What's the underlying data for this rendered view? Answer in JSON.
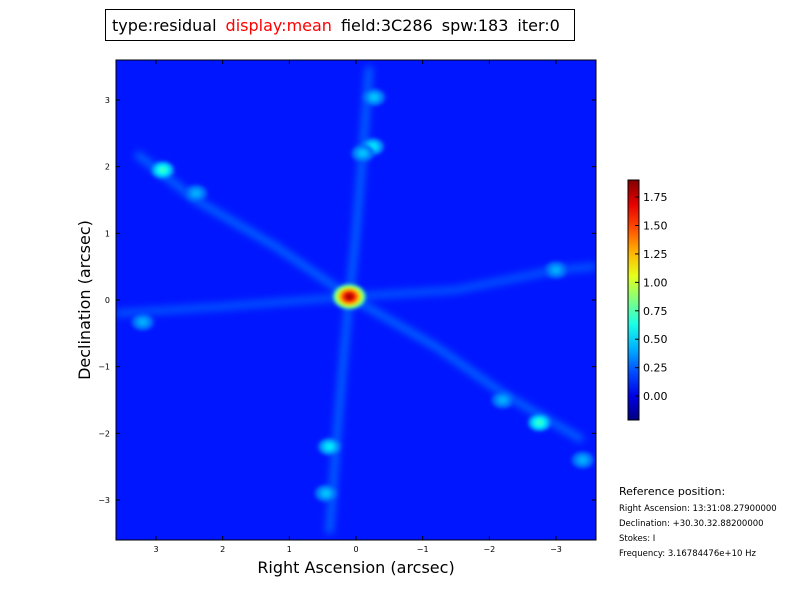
{
  "title": {
    "type": "type:residual",
    "display": "display:mean",
    "field": "field:3C286",
    "spw": "spw:183",
    "iter": "iter:0",
    "display_color": "#ff0000"
  },
  "chart_data": {
    "type": "heatmap",
    "colormap": "jet",
    "xlabel": "Right Ascension (arcsec)",
    "ylabel": "Declination (arcsec)",
    "xlim": [
      3.6,
      -3.6
    ],
    "ylim": [
      -3.6,
      3.6
    ],
    "xticks": [
      "3",
      "2",
      "1",
      "0",
      "−1",
      "−2",
      "−3"
    ],
    "xtick_values": [
      3,
      2,
      1,
      0,
      -1,
      -2,
      -3
    ],
    "yticks": [
      "3",
      "2",
      "1",
      "0",
      "−1",
      "−2",
      "−3"
    ],
    "ytick_values": [
      3,
      2,
      1,
      0,
      -1,
      -2,
      -3
    ],
    "background_value": 0.1,
    "peaks": [
      {
        "ra": 0.1,
        "dec": 0.05,
        "value": 1.9
      },
      {
        "ra": 2.9,
        "dec": 1.95,
        "value": 0.75
      },
      {
        "ra": -0.25,
        "dec": 2.3,
        "value": 0.6
      },
      {
        "ra": -0.1,
        "dec": 2.2,
        "value": 0.5
      },
      {
        "ra": -0.27,
        "dec": 3.04,
        "value": 0.5
      },
      {
        "ra": -2.75,
        "dec": -1.84,
        "value": 0.75
      },
      {
        "ra": 0.4,
        "dec": -2.2,
        "value": 0.6
      },
      {
        "ra": 0.45,
        "dec": -2.9,
        "value": 0.5
      },
      {
        "ra": 3.2,
        "dec": -0.33,
        "value": 0.45
      },
      {
        "ra": -3.0,
        "dec": 0.45,
        "value": 0.45
      },
      {
        "ra": -3.4,
        "dec": -2.4,
        "value": 0.45
      },
      {
        "ra": 2.4,
        "dec": 1.6,
        "value": 0.45
      },
      {
        "ra": -2.2,
        "dec": -1.5,
        "value": 0.45
      }
    ],
    "ridges": [
      {
        "value": 0.35,
        "points": [
          [
            3.3,
            2.2
          ],
          [
            2.4,
            1.5
          ],
          [
            1.2,
            0.8
          ],
          [
            0.1,
            0.05
          ],
          [
            -1.2,
            -0.7
          ],
          [
            -2.2,
            -1.4
          ],
          [
            -3.4,
            -2.1
          ]
        ]
      },
      {
        "value": 0.35,
        "points": [
          [
            -0.2,
            3.5
          ],
          [
            -0.1,
            2.2
          ],
          [
            0.0,
            1.0
          ],
          [
            0.1,
            0.05
          ],
          [
            0.2,
            -1.0
          ],
          [
            0.3,
            -2.2
          ],
          [
            0.4,
            -3.5
          ]
        ]
      },
      {
        "value": 0.3,
        "points": [
          [
            3.6,
            -0.2
          ],
          [
            2.0,
            -0.1
          ],
          [
            0.1,
            0.05
          ],
          [
            -1.5,
            0.15
          ],
          [
            -3.0,
            0.45
          ],
          [
            -3.6,
            0.5
          ]
        ]
      }
    ],
    "colorbar": {
      "range": [
        -0.21,
        1.9
      ],
      "ticks": [
        "0.00",
        "0.25",
        "0.50",
        "0.75",
        "1.00",
        "1.25",
        "1.50",
        "1.75"
      ],
      "tick_values": [
        0,
        0.25,
        0.5,
        0.75,
        1.0,
        1.25,
        1.5,
        1.75
      ]
    }
  },
  "reference": {
    "heading": "Reference position:",
    "ra": "Right Ascension: 13:31:08.27900000",
    "dec": "Declination: +30.30.32.88200000",
    "stokes": "Stokes: I",
    "frequency": "Frequency: 3.16784476e+10 Hz"
  }
}
